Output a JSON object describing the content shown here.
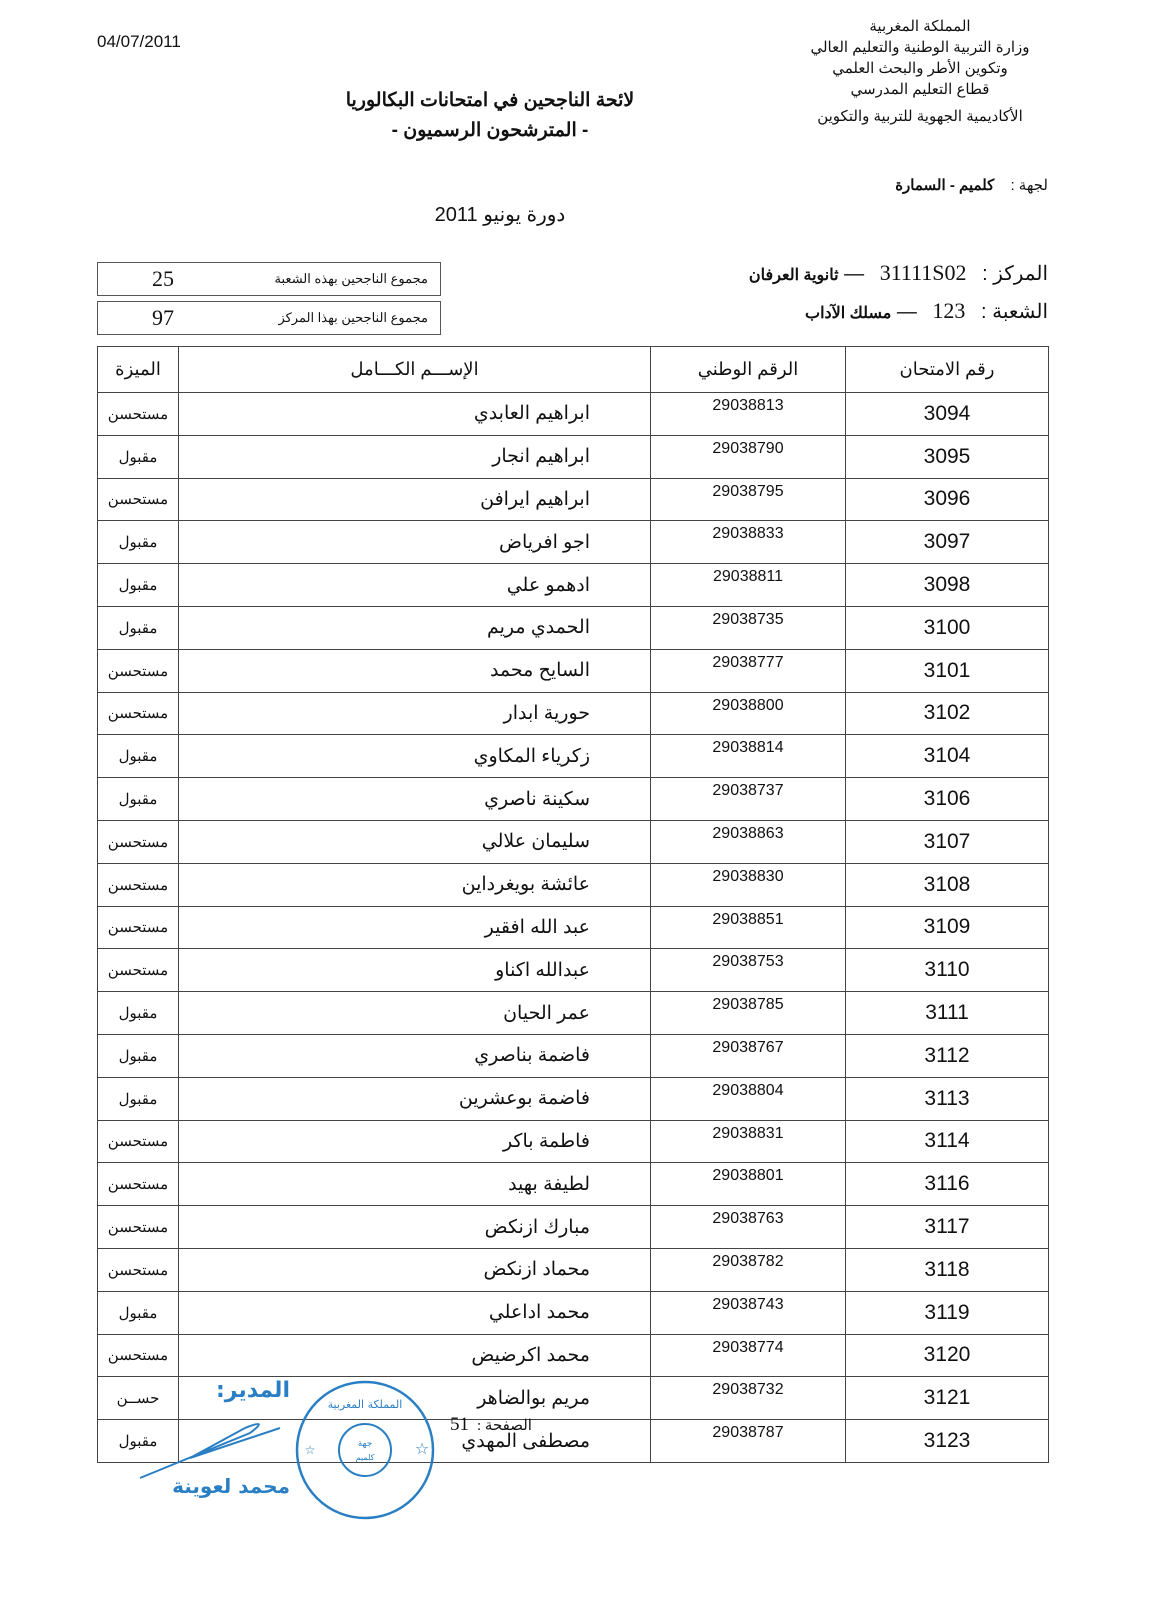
{
  "date": "04/07/2011",
  "organization": {
    "lines": [
      "المملكة المغربية",
      "وزارة التربية الوطنية والتعليم العالي",
      "وتكوين الأطر والبحث العلمي",
      "قطاع التعليم المدرسي",
      "الأكاديمية الجهوية للتربية والتكوين"
    ],
    "region_label": "لجهة :",
    "region_value": "كلميم - السمارة"
  },
  "title": {
    "line1": "لائحة الناجحين في امتحانات البكالوريا",
    "line2": "- المترشحون الرسميون -"
  },
  "session": "دورة  يونيو  2011",
  "center": {
    "label": "المركز :",
    "code": "31111S02",
    "sep": "—",
    "name": "ثانوية العرفان"
  },
  "branch": {
    "label": "الشعبة :",
    "code": "123",
    "sep": "—",
    "name": "مسلك الآداب"
  },
  "totals": [
    {
      "label": "مجموع الناجحين بهذه الشعبة",
      "value": "25"
    },
    {
      "label": "مجموع الناجحين بهذا المركز",
      "value": "97"
    }
  ],
  "table": {
    "headers": [
      "رقم الامتحان",
      "الرقم الوطني",
      "الإســـم الكـــامل",
      "الميزة"
    ],
    "rows": [
      [
        "3094",
        "29038813",
        "ابراهيم العابدي",
        "مستحسن"
      ],
      [
        "3095",
        "29038790",
        "ابراهيم انجار",
        "مقبول"
      ],
      [
        "3096",
        "29038795",
        "ابراهيم ايرافن",
        "مستحسن"
      ],
      [
        "3097",
        "29038833",
        "اجو افرياض",
        "مقبول"
      ],
      [
        "3098",
        "29038811",
        "ادهمو علي",
        "مقبول"
      ],
      [
        "3100",
        "29038735",
        "الحمدي مريم",
        "مقبول"
      ],
      [
        "3101",
        "29038777",
        "السايح محمد",
        "مستحسن"
      ],
      [
        "3102",
        "29038800",
        "حورية ابدار",
        "مستحسن"
      ],
      [
        "3104",
        "29038814",
        "زكرياء المكاوي",
        "مقبول"
      ],
      [
        "3106",
        "29038737",
        "سكينة ناصري",
        "مقبول"
      ],
      [
        "3107",
        "29038863",
        "سليمان علالي",
        "مستحسن"
      ],
      [
        "3108",
        "29038830",
        "عائشة بويغرداين",
        "مستحسن"
      ],
      [
        "3109",
        "29038851",
        "عبد الله افقير",
        "مستحسن"
      ],
      [
        "3110",
        "29038753",
        "عبدالله اكناو",
        "مستحسن"
      ],
      [
        "3111",
        "29038785",
        "عمر الحيان",
        "مقبول"
      ],
      [
        "3112",
        "29038767",
        "فاضمة بناصري",
        "مقبول"
      ],
      [
        "3113",
        "29038804",
        "فاضمة بوعشرين",
        "مقبول"
      ],
      [
        "3114",
        "29038831",
        "فاطمة باكر",
        "مستحسن"
      ],
      [
        "3116",
        "29038801",
        "لطيفة بهيد",
        "مستحسن"
      ],
      [
        "3117",
        "29038763",
        "مبارك ازنكض",
        "مستحسن"
      ],
      [
        "3118",
        "29038782",
        "محماد ازنكض",
        "مستحسن"
      ],
      [
        "3119",
        "29038743",
        "محمد اداعلي",
        "مقبول"
      ],
      [
        "3120",
        "29038774",
        "محمد اكرضيض",
        "مستحسن"
      ],
      [
        "3121",
        "29038732",
        "مريم بوالضاهر",
        "حســن"
      ],
      [
        "3123",
        "29038787",
        "مصطفى المهدي",
        "مقبول"
      ]
    ]
  },
  "page": {
    "label": "الصفحة :",
    "number": "51"
  },
  "signature": {
    "title": "المدير:",
    "name": "محمد لعوينة"
  },
  "stamp": {
    "text": "المملكة المغربية - جهة كلميم السمارة"
  },
  "colors": {
    "stamp_ink": "#2a7fc4",
    "text": "#111111"
  }
}
